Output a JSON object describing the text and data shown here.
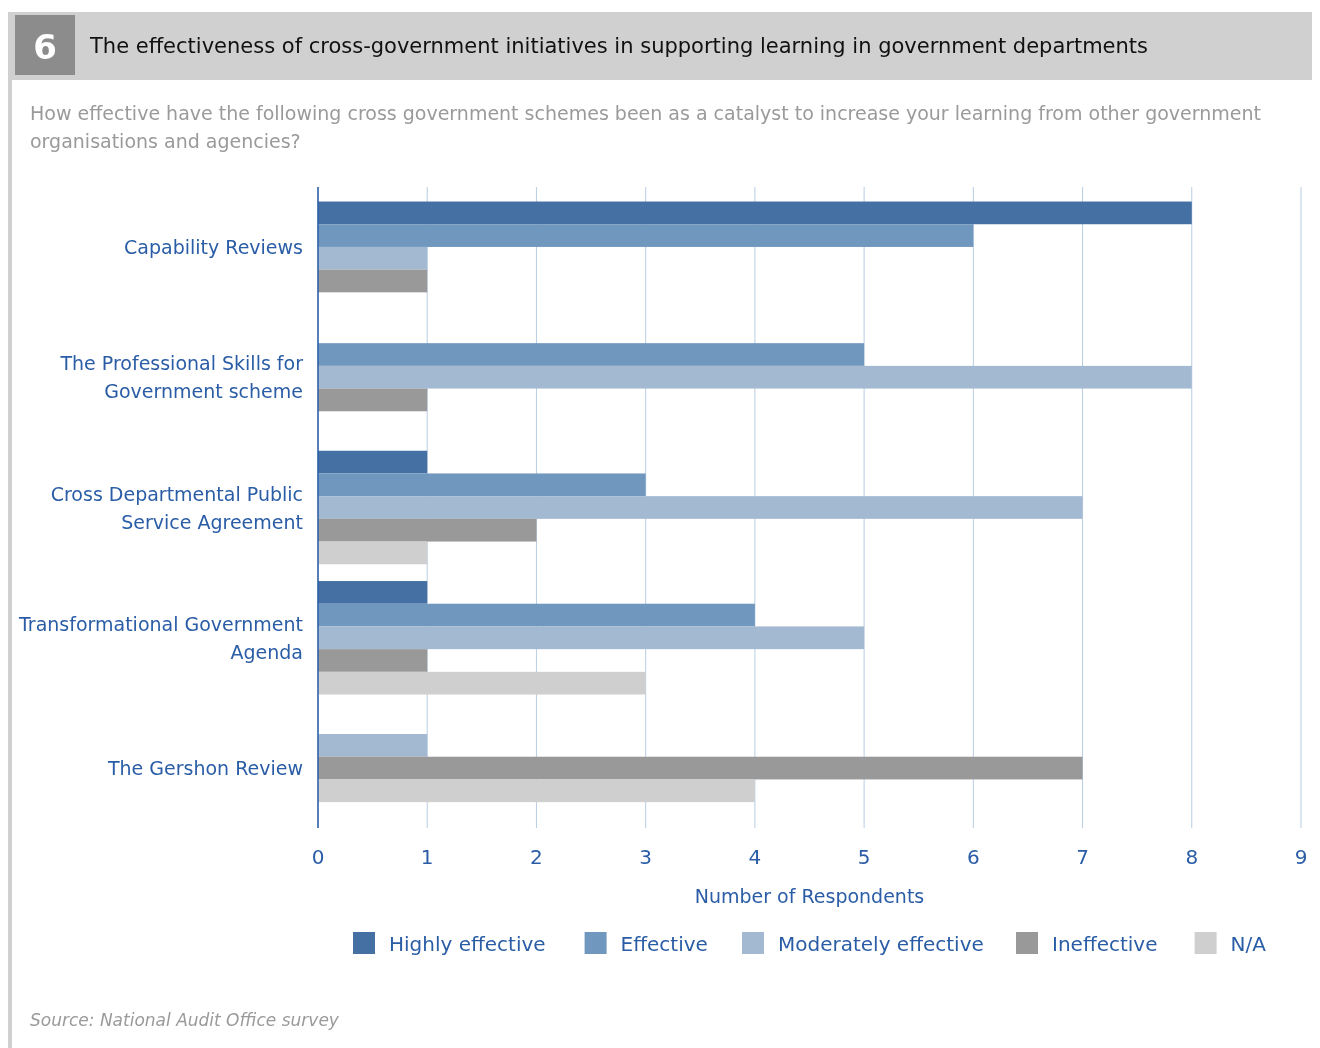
{
  "chart_data": {
    "type": "bar",
    "orientation": "horizontal",
    "title": "The effectiveness of cross-government initiatives in supporting learning in government departments",
    "subtitle": "How effective have the following cross government schemes been as a catalyst to increase your learning from other government organisations and agencies?",
    "xlabel": "Number of Respondents",
    "categories": [
      "Capability Reviews",
      "The Professional Skills for Government scheme",
      "Cross Departmental Public Service Agreement",
      "Transformational Government Agenda",
      "The Gershon Review"
    ],
    "series": [
      {
        "name": "Highly effective",
        "color": "#4570a3",
        "values": [
          8,
          null,
          1,
          1,
          null
        ]
      },
      {
        "name": "Effective",
        "color": "#7097be",
        "values": [
          6,
          5,
          3,
          4,
          null
        ]
      },
      {
        "name": "Moderately effective",
        "color": "#a3b9d2",
        "values": [
          1,
          8,
          7,
          5,
          1
        ]
      },
      {
        "name": "Ineffective",
        "color": "#999999",
        "values": [
          1,
          1,
          2,
          1,
          7
        ]
      },
      {
        "name": "N/A",
        "color": "#cfcfcf",
        "values": [
          null,
          null,
          1,
          3,
          4
        ]
      }
    ],
    "xlim": [
      0,
      9
    ],
    "xticks": [
      0,
      1,
      2,
      3,
      4,
      5,
      6,
      7,
      8,
      9
    ],
    "grid": "x",
    "legend": "bottom",
    "annotations": [
      "6",
      "Source: National Audit Office survey"
    ]
  }
}
